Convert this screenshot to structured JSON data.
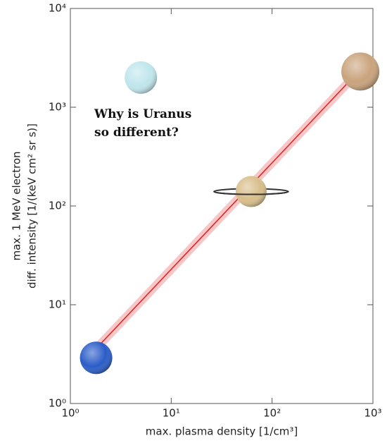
{
  "chart_data": {
    "type": "scatter",
    "xlabel": "max. plasma density [1/cm³]",
    "ylabel": [
      "max. 1 MeV electron",
      "diff. intensity [1/(keV cm² sr s)]"
    ],
    "annotation": [
      "Why is Uranus",
      "so different?"
    ],
    "x_log": true,
    "y_log": true,
    "xlim": [
      1,
      1000
    ],
    "ylim": [
      1,
      10000
    ],
    "xticks": [
      {
        "value": 1,
        "label": "10⁰"
      },
      {
        "value": 10,
        "label": "10¹"
      },
      {
        "value": 100,
        "label": "10²"
      },
      {
        "value": 1000,
        "label": "10³"
      }
    ],
    "yticks": [
      {
        "value": 1,
        "label": "10⁰"
      },
      {
        "value": 10,
        "label": "10¹"
      },
      {
        "value": 100,
        "label": "10²"
      },
      {
        "value": 1000,
        "label": "10³"
      },
      {
        "value": 10000,
        "label": "10⁴"
      }
    ],
    "points": {
      "x": [
        1.8,
        5,
        62,
        750
      ],
      "y": [
        2.9,
        2000,
        140,
        2300
      ],
      "colors": [
        "#2a5cc8",
        "#bfe6ec",
        "#d8be8a",
        "#c9a37c"
      ],
      "rings": [
        false,
        false,
        true,
        false
      ]
    },
    "fit": {
      "x": [
        1.8,
        750
      ],
      "y": [
        3.6,
        2400
      ],
      "color": "#e02020"
    }
  }
}
